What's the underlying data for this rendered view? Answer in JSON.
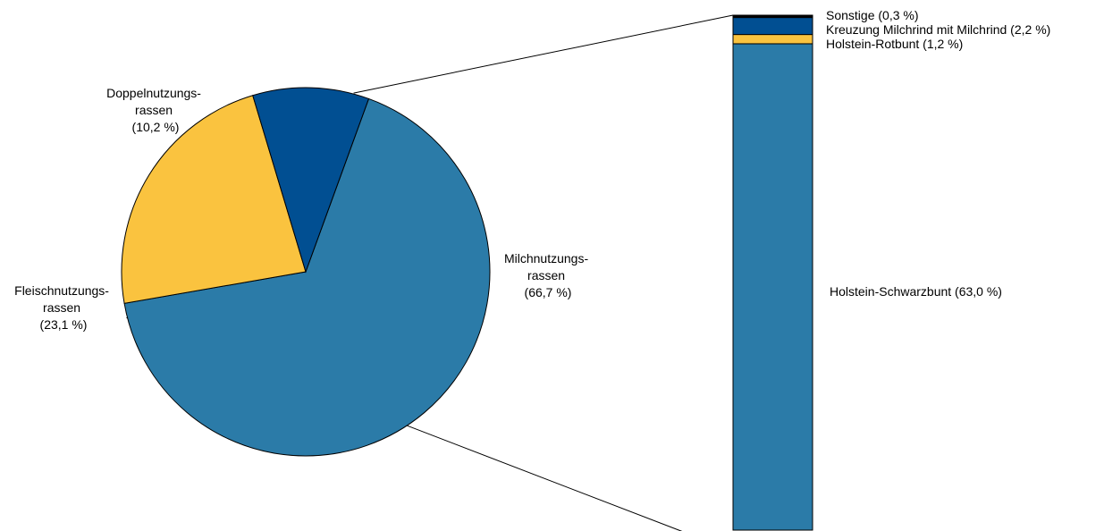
{
  "chart_data": {
    "type": "pie",
    "title": "",
    "pie": {
      "slices": [
        {
          "line1": "Milchnutzungs-",
          "line2": "rassen",
          "line3": "(66,7 %)",
          "value": 66.7,
          "color": "#2b7ba8"
        },
        {
          "line1": "Fleischnutzungs-",
          "line2": "rassen",
          "line3": "(23,1 %)",
          "value": 23.1,
          "color": "#fac33f"
        },
        {
          "line1": "Doppelnutzungs-",
          "line2": "rassen",
          "line3": "(10,2 %)",
          "value": 10.2,
          "color": "#014f92"
        }
      ]
    },
    "breakdown": {
      "parent": "Milchnutzungs-rassen",
      "segments": [
        {
          "label": "Holstein-Schwarzbunt (63,0 %)",
          "value": 63.0,
          "color": "#2b7ba8"
        },
        {
          "label": "Holstein-Rotbunt (1,2 %)",
          "value": 1.2,
          "color": "#fac33f"
        },
        {
          "label": "Kreuzung Milchrind mit Milchrind (2,2 %)",
          "value": 2.2,
          "color": "#014f92"
        },
        {
          "label": "Sonstige (0,3 %)",
          "value": 0.3,
          "color": "#000000"
        }
      ]
    }
  }
}
